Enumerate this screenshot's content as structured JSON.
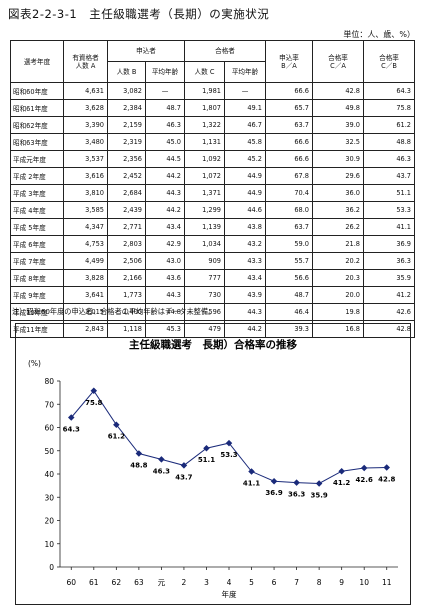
{
  "title": "図表2-2-3-1　主任級職選考（長期）の実施状況",
  "unit": "単位：人、歳、%）",
  "table": {
    "headers": {
      "year": "選考年度",
      "qualified": [
        "有資格者",
        "人数 A"
      ],
      "applicants": "申込者",
      "applicants_count": "人数 B",
      "applicants_age": "平均年齢",
      "passers": "合格者",
      "passers_count": "人数 C",
      "passers_age": "平均年齢",
      "app_rate": [
        "申込率",
        "B／A"
      ],
      "pass_rate_a": [
        "合格率",
        "C／A"
      ],
      "pass_rate_b": [
        "合格率",
        "C／B"
      ]
    },
    "rows": [
      {
        "year": "昭和60年度",
        "a": "4,631",
        "b": "3,082",
        "b_age": "—",
        "c": "1,981",
        "c_age": "—",
        "ba": "66.6",
        "ca": "42.8",
        "cb": "64.3"
      },
      {
        "year": "昭和61年度",
        "a": "3,628",
        "b": "2,384",
        "b_age": "48.7",
        "c": "1,807",
        "c_age": "49.1",
        "ba": "65.7",
        "ca": "49.8",
        "cb": "75.8"
      },
      {
        "year": "昭和62年度",
        "a": "3,390",
        "b": "2,159",
        "b_age": "46.3",
        "c": "1,322",
        "c_age": "46.7",
        "ba": "63.7",
        "ca": "39.0",
        "cb": "61.2"
      },
      {
        "year": "昭和63年度",
        "a": "3,480",
        "b": "2,319",
        "b_age": "45.0",
        "c": "1,131",
        "c_age": "45.8",
        "ba": "66.6",
        "ca": "32.5",
        "cb": "48.8"
      },
      {
        "year": "平成元年度",
        "a": "3,537",
        "b": "2,356",
        "b_age": "44.5",
        "c": "1,092",
        "c_age": "45.2",
        "ba": "66.6",
        "ca": "30.9",
        "cb": "46.3"
      },
      {
        "year": "平成 2年度",
        "a": "3,616",
        "b": "2,452",
        "b_age": "44.2",
        "c": "1,072",
        "c_age": "44.9",
        "ba": "67.8",
        "ca": "29.6",
        "cb": "43.7"
      },
      {
        "year": "平成 3年度",
        "a": "3,810",
        "b": "2,684",
        "b_age": "44.3",
        "c": "1,371",
        "c_age": "44.9",
        "ba": "70.4",
        "ca": "36.0",
        "cb": "51.1"
      },
      {
        "year": "平成 4年度",
        "a": "3,585",
        "b": "2,439",
        "b_age": "44.2",
        "c": "1,299",
        "c_age": "44.6",
        "ba": "68.0",
        "ca": "36.2",
        "cb": "53.3"
      },
      {
        "year": "平成 5年度",
        "a": "4,347",
        "b": "2,771",
        "b_age": "43.4",
        "c": "1,139",
        "c_age": "43.8",
        "ba": "63.7",
        "ca": "26.2",
        "cb": "41.1"
      },
      {
        "year": "平成 6年度",
        "a": "4,753",
        "b": "2,803",
        "b_age": "42.9",
        "c": "1,034",
        "c_age": "43.2",
        "ba": "59.0",
        "ca": "21.8",
        "cb": "36.9"
      },
      {
        "year": "平成 7年度",
        "a": "4,499",
        "b": "2,506",
        "b_age": "43.0",
        "c": "909",
        "c_age": "43.3",
        "ba": "55.7",
        "ca": "20.2",
        "cb": "36.3"
      },
      {
        "year": "平成 8年度",
        "a": "3,828",
        "b": "2,166",
        "b_age": "43.6",
        "c": "777",
        "c_age": "43.4",
        "ba": "56.6",
        "ca": "20.3",
        "cb": "35.9"
      },
      {
        "year": "平成 9年度",
        "a": "3,641",
        "b": "1,773",
        "b_age": "44.3",
        "c": "730",
        "c_age": "43.9",
        "ba": "48.7",
        "ca": "20.0",
        "cb": "41.2"
      },
      {
        "year": "平成10年度",
        "a": "3,015",
        "b": "1,400",
        "b_age": "44.8",
        "c": "596",
        "c_age": "44.3",
        "ba": "46.4",
        "ca": "19.8",
        "cb": "42.6"
      },
      {
        "year": "平成11年度",
        "a": "2,843",
        "b": "1,118",
        "b_age": "45.3",
        "c": "479",
        "c_age": "44.2",
        "ba": "39.3",
        "ca": "16.8",
        "cb": "42.8"
      }
    ]
  },
  "note": "注）昭和60年度の申込者、合格者の平均年齢はデータ未整備。",
  "chart_data": {
    "type": "line",
    "title": "主任級職選考　長期）合格率の推移",
    "ylabel": "(%)",
    "xlabel": "年度",
    "categories": [
      "60",
      "61",
      "62",
      "63",
      "元",
      "2",
      "3",
      "4",
      "5",
      "6",
      "7",
      "8",
      "9",
      "10",
      "11"
    ],
    "values": [
      64.3,
      75.8,
      61.2,
      48.8,
      46.3,
      43.7,
      51.1,
      53.3,
      41.1,
      36.9,
      36.3,
      35.9,
      41.2,
      42.6,
      42.8
    ],
    "value_labels": [
      "64.3",
      "75.8",
      "61.2",
      "48.8",
      "46.3",
      "43.7",
      "51.1",
      "53.3",
      "41.1",
      "36.9",
      "36.3",
      "35.9",
      "41.2",
      "42.6",
      "42.8"
    ],
    "ylim": [
      0,
      80
    ],
    "yticks": [
      "0",
      "10",
      "20",
      "30",
      "40",
      "50",
      "60",
      "70",
      "80"
    ],
    "grid": false,
    "line_color": "#1a2a7a"
  }
}
